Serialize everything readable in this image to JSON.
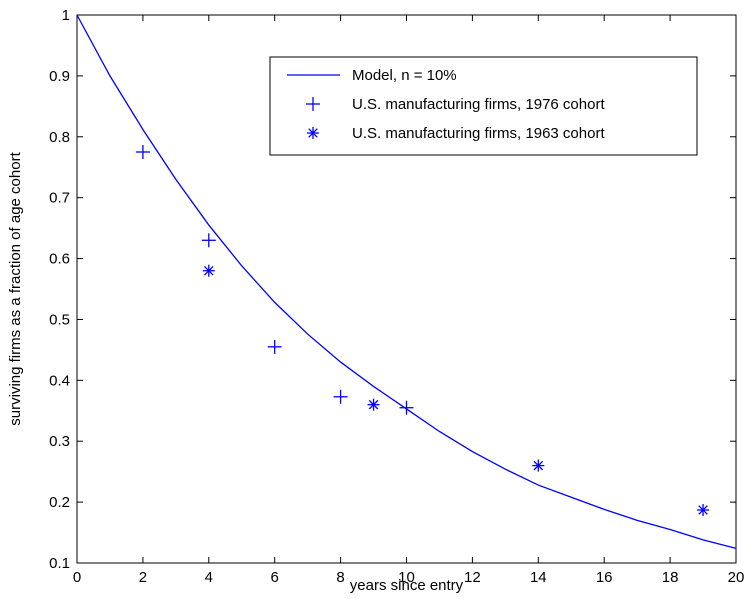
{
  "chart_data": {
    "type": "scatter",
    "title": "",
    "xlabel": "years since entry",
    "ylabel": "surviving firms as a fraction of age cohort",
    "xlim": [
      0,
      20
    ],
    "ylim": [
      0.1,
      1
    ],
    "xticks": [
      0,
      2,
      4,
      6,
      8,
      10,
      12,
      14,
      16,
      18,
      20
    ],
    "yticks": [
      0.1,
      0.2,
      0.3,
      0.4,
      0.5,
      0.6,
      0.7,
      0.8,
      0.9,
      1
    ],
    "grid": false,
    "legend_position": "top-right",
    "colors": {
      "series": "#0000ff",
      "axes": "#000000",
      "background": "#ffffff"
    },
    "series": [
      {
        "name": "Model, n = 10%",
        "kind": "line",
        "x": [
          0,
          1,
          2,
          3,
          4,
          5,
          6,
          7,
          8,
          9,
          10,
          11,
          12,
          13,
          14,
          15,
          16,
          17,
          18,
          19,
          20
        ],
        "y": [
          1.0,
          0.9,
          0.812,
          0.73,
          0.655,
          0.588,
          0.528,
          0.476,
          0.43,
          0.39,
          0.353,
          0.316,
          0.283,
          0.254,
          0.228,
          0.208,
          0.188,
          0.17,
          0.155,
          0.138,
          0.124
        ]
      },
      {
        "name": "U.S. manufacturing firms, 1976 cohort",
        "kind": "plus",
        "x": [
          2,
          4,
          6,
          8,
          10
        ],
        "y": [
          0.775,
          0.63,
          0.455,
          0.373,
          0.355
        ]
      },
      {
        "name": "U.S. manufacturing firms, 1963 cohort",
        "kind": "asterisk",
        "x": [
          4,
          9,
          14,
          19
        ],
        "y": [
          0.58,
          0.36,
          0.26,
          0.187
        ]
      }
    ]
  }
}
